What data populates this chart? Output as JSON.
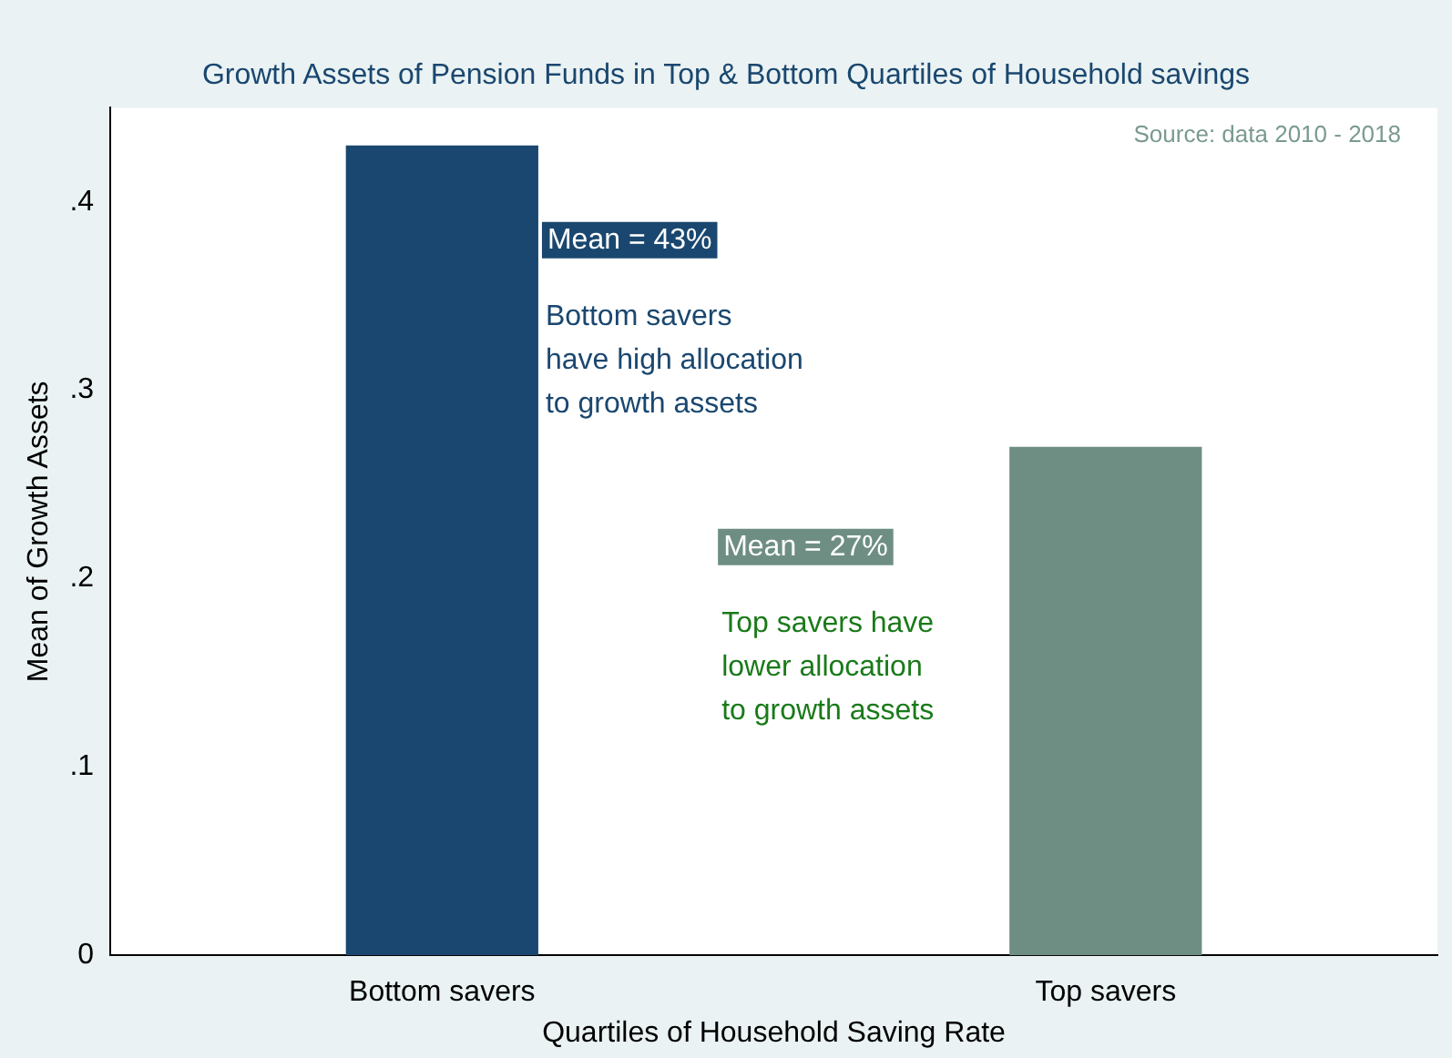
{
  "chart_data": {
    "type": "bar",
    "title": "Growth Assets of Pension Funds in Top & Bottom Quartiles of Household savings",
    "xlabel": "Quartiles of Household Saving Rate",
    "ylabel": "Mean of Growth Assets",
    "categories": [
      "Bottom savers",
      "Top savers"
    ],
    "values": [
      0.43,
      0.27
    ],
    "colors": [
      "#1a476f",
      "#6e8e84"
    ],
    "ylim": [
      0,
      0.45
    ],
    "yticks": [
      {
        "value": 0,
        "label": "0"
      },
      {
        "value": 0.1,
        "label": ".1"
      },
      {
        "value": 0.2,
        "label": ".2"
      },
      {
        "value": 0.3,
        "label": ".3"
      },
      {
        "value": 0.4,
        "label": ".4"
      }
    ],
    "grid": false,
    "legend": false,
    "annotations": [
      {
        "text": "Source: data 2010 - 2018"
      },
      "Mean = 43%",
      {
        "text": "Bottom savers\nhave high allocation\nto growth assets"
      },
      "Mean = 27%",
      {
        "text": "Top savers have\nlower allocation\nto growth assets"
      }
    ]
  }
}
